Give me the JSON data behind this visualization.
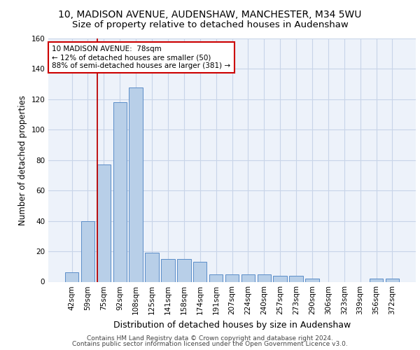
{
  "title_line1": "10, MADISON AVENUE, AUDENSHAW, MANCHESTER, M34 5WU",
  "title_line2": "Size of property relative to detached houses in Audenshaw",
  "xlabel": "Distribution of detached houses by size in Audenshaw",
  "ylabel": "Number of detached properties",
  "bar_labels": [
    "42sqm",
    "59sqm",
    "75sqm",
    "92sqm",
    "108sqm",
    "125sqm",
    "141sqm",
    "158sqm",
    "174sqm",
    "191sqm",
    "207sqm",
    "224sqm",
    "240sqm",
    "257sqm",
    "273sqm",
    "290sqm",
    "306sqm",
    "323sqm",
    "339sqm",
    "356sqm",
    "372sqm"
  ],
  "bar_heights": [
    6,
    40,
    77,
    118,
    128,
    19,
    15,
    15,
    13,
    5,
    5,
    5,
    5,
    4,
    4,
    2,
    0,
    0,
    0,
    2,
    2
  ],
  "bar_color": "#b8cfe8",
  "bar_edge_color": "#5b8dc8",
  "grid_color": "#c8d4e8",
  "background_color": "#edf2fa",
  "vline_color": "#bb0000",
  "vline_x_index": 2,
  "annotation_text_line1": "10 MADISON AVENUE:  78sqm",
  "annotation_text_line2": "← 12% of detached houses are smaller (50)",
  "annotation_text_line3": "88% of semi-detached houses are larger (381) →",
  "annotation_box_color": "#ffffff",
  "annotation_box_edge": "#cc0000",
  "footer_line1": "Contains HM Land Registry data © Crown copyright and database right 2024.",
  "footer_line2": "Contains public sector information licensed under the Open Government Licence v3.0.",
  "ylim": [
    0,
    160
  ],
  "yticks": [
    0,
    20,
    40,
    60,
    80,
    100,
    120,
    140,
    160
  ],
  "title1_fontsize": 10,
  "title2_fontsize": 9.5,
  "xlabel_fontsize": 9,
  "ylabel_fontsize": 8.5,
  "tick_fontsize": 7.5,
  "footer_fontsize": 6.5,
  "ann_fontsize": 7.5
}
